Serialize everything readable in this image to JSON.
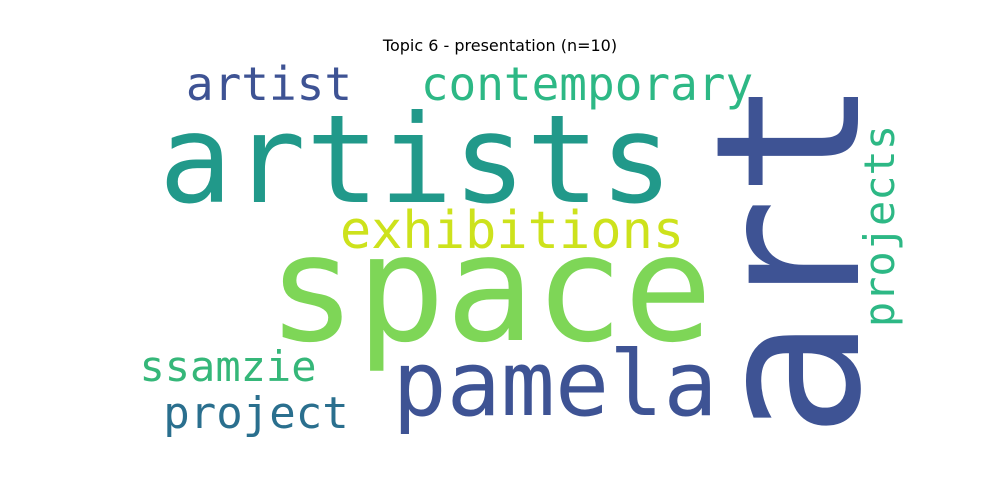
{
  "chart_data": {
    "type": "wordcloud",
    "title": "Topic 6 - presentation (n=10)",
    "words": [
      {
        "text": "space",
        "weight": 1.0,
        "color": "#7ed657",
        "rotated": false
      },
      {
        "text": "artists",
        "weight": 0.82,
        "color": "#21998a",
        "rotated": false
      },
      {
        "text": "art",
        "weight": 0.95,
        "color": "#3e5394",
        "rotated": true
      },
      {
        "text": "pamela",
        "weight": 0.6,
        "color": "#3e5394",
        "rotated": false
      },
      {
        "text": "exhibitions",
        "weight": 0.32,
        "color": "#cde21c",
        "rotated": false
      },
      {
        "text": "contemporary",
        "weight": 0.3,
        "color": "#2db885",
        "rotated": false
      },
      {
        "text": "artist",
        "weight": 0.28,
        "color": "#3e5394",
        "rotated": false
      },
      {
        "text": "projects",
        "weight": 0.26,
        "color": "#2db885",
        "rotated": true
      },
      {
        "text": "project",
        "weight": 0.27,
        "color": "#2a6f8e",
        "rotated": false
      },
      {
        "text": "ssamzie",
        "weight": 0.26,
        "color": "#35b779",
        "rotated": false
      }
    ]
  }
}
